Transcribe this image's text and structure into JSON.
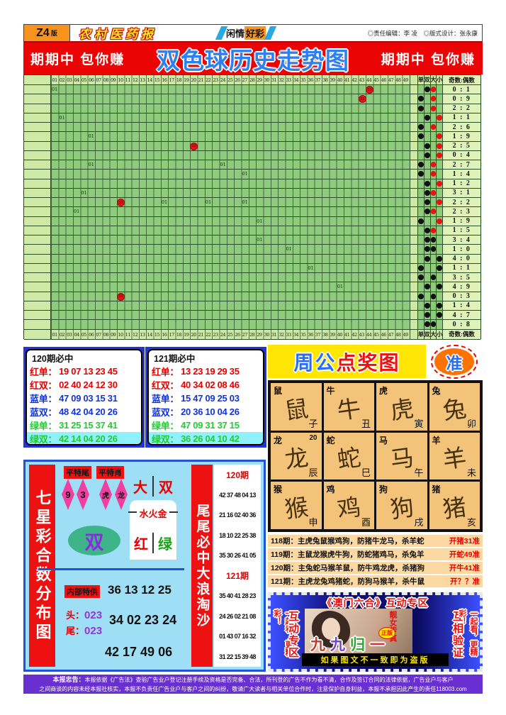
{
  "header": {
    "edition": "Z4",
    "edition_suffix": "版",
    "paper": "农村医药报",
    "center_left": "闲情",
    "center_right": "好彩",
    "credits": "◎责任编辑：李 凌　◎版式设计：张永康"
  },
  "banner": {
    "left": "期期中 包你赚",
    "title": "双色球历史走势图",
    "right": "期期中 包你赚"
  },
  "trend": {
    "col_start": 1,
    "col_count": 49,
    "side_headers": [
      "单",
      "双",
      "大",
      "小"
    ],
    "ratio_header": "奇数:偶数",
    "mark_label": "01",
    "ball_label": "33",
    "dot_black": "#111111",
    "dot_red": "#e81212",
    "rows": [
      {
        "ratio": "0 : 1",
        "dan_shuang": "双",
        "da_xiao": "大",
        "da_xiao_color": "red",
        "balls": [
          44
        ],
        "marks": [
          1
        ]
      },
      {
        "ratio": "0 : 9",
        "dan_shuang": "单",
        "da_xiao": "大",
        "da_xiao_color": "red",
        "balls": [
          43
        ],
        "marks": []
      },
      {
        "ratio": "2 : 2",
        "dan_shuang": "单",
        "da_xiao": "大",
        "da_xiao_color": "red",
        "balls": [],
        "marks": []
      },
      {
        "ratio": "1 : 1",
        "dan_shuang": "双",
        "da_xiao": "小",
        "da_xiao_color": "red",
        "balls": [],
        "marks": [
          2
        ]
      },
      {
        "ratio": "2 : 6",
        "dan_shuang": "单",
        "da_xiao": "大",
        "da_xiao_color": "red",
        "balls": [],
        "marks": []
      },
      {
        "ratio": "1 : 9",
        "dan_shuang": "单",
        "da_xiao": "小",
        "da_xiao_color": "red",
        "balls": [],
        "marks": [
          6
        ]
      },
      {
        "ratio": "2 : 5",
        "dan_shuang": "双",
        "da_xiao": "小",
        "da_xiao_color": "red",
        "balls": [
          20
        ],
        "marks": []
      },
      {
        "ratio": "0 : 4",
        "dan_shuang": "双",
        "da_xiao": "小",
        "da_xiao_color": "red",
        "balls": [],
        "marks": []
      },
      {
        "ratio": "2 : 7",
        "dan_shuang": "单",
        "da_xiao": "大",
        "da_xiao_color": "red",
        "balls": [],
        "marks": [
          6,
          24
        ]
      },
      {
        "ratio": "1 : 4",
        "dan_shuang": "单",
        "da_xiao": "大",
        "da_xiao_color": "red",
        "balls": [],
        "marks": [
          27
        ]
      },
      {
        "ratio": "1 : 2",
        "dan_shuang": "双",
        "da_xiao": "小",
        "da_xiao_color": "red",
        "balls": [],
        "marks": []
      },
      {
        "ratio": "3 : 1",
        "dan_shuang": "双",
        "da_xiao": "大",
        "da_xiao_color": "red",
        "balls": [],
        "marks": [
          5
        ]
      },
      {
        "ratio": "2 : 2",
        "dan_shuang": "双",
        "da_xiao": "小",
        "da_xiao_color": "red",
        "balls": [
          10
        ],
        "marks": [
          16,
          22,
          27
        ]
      },
      {
        "ratio": "2 : 3",
        "dan_shuang": "双",
        "da_xiao": "大",
        "da_xiao_color": "red",
        "balls": [],
        "marks": [
          4
        ]
      },
      {
        "ratio": "1 : 9",
        "dan_shuang": "单",
        "da_xiao": "小",
        "da_xiao_color": "red",
        "balls": [],
        "marks": [
          29
        ]
      },
      {
        "ratio": "1 : 5",
        "dan_shuang": "双",
        "da_xiao": "大",
        "da_xiao_color": "red",
        "balls": [],
        "marks": []
      },
      {
        "ratio": "3 : 4",
        "dan_shuang": "双",
        "da_xiao": "大",
        "da_xiao_color": "black",
        "balls": [],
        "marks": [
          29
        ]
      },
      {
        "ratio": "1 : 0",
        "dan_shuang": "双",
        "da_xiao": "大",
        "da_xiao_color": "black",
        "balls": [],
        "marks": [
          33
        ]
      },
      {
        "ratio": "4 : 0",
        "dan_shuang": "双",
        "da_xiao": "小",
        "da_xiao_color": "black",
        "balls": [],
        "marks": []
      },
      {
        "ratio": "1 : 1",
        "dan_shuang": "单",
        "da_xiao": "小",
        "da_xiao_color": "black",
        "balls": [],
        "marks": [
          36
        ]
      },
      {
        "ratio": "3 : 5",
        "dan_shuang": "单",
        "da_xiao": "大",
        "da_xiao_color": "black",
        "balls": [],
        "marks": []
      },
      {
        "ratio": "4 : 9",
        "dan_shuang": "双",
        "da_xiao": "小",
        "da_xiao_color": "black",
        "balls": [],
        "marks": [
          40
        ]
      },
      {
        "ratio": "0 : 3",
        "dan_shuang": "单",
        "da_xiao": "大",
        "da_xiao_color": "black",
        "balls": [
          10
        ],
        "marks": []
      },
      {
        "ratio": "1 : 4",
        "dan_shuang": "双",
        "da_xiao": "小",
        "da_xiao_color": "black",
        "balls": [],
        "marks": []
      },
      {
        "ratio": "4 : 7",
        "dan_shuang": "双",
        "da_xiao": "小",
        "da_xiao_color": "black",
        "balls": [],
        "marks": []
      },
      {
        "ratio": "0 : 8",
        "dan_shuang": "双",
        "da_xiao": "大",
        "da_xiao_color": "black",
        "balls": [],
        "marks": []
      }
    ]
  },
  "predictions": [
    {
      "title": "120期必中",
      "rows": [
        {
          "label": "红单：",
          "nums": "19 07 13 23 45",
          "color": "#e60000",
          "highlight": false
        },
        {
          "label": "红双：",
          "nums": "02 40 24 12 30",
          "color": "#e60000",
          "highlight": false
        },
        {
          "label": "蓝单：",
          "nums": "47 09 03 15 31",
          "color": "#1133dd",
          "highlight": false
        },
        {
          "label": "蓝双：",
          "nums": "48 42 04 20 26",
          "color": "#1133dd",
          "highlight": false
        },
        {
          "label": "绿单：",
          "nums": "31 25 15 37 41",
          "color": "#22cc33",
          "highlight": false
        },
        {
          "label": "绿双：",
          "nums": "42 14 04 20 26",
          "color": "#22cc33",
          "highlight": true
        }
      ]
    },
    {
      "title": "121期必中",
      "rows": [
        {
          "label": "红单：",
          "nums": "13 23 19 29 35",
          "color": "#e60000",
          "highlight": false
        },
        {
          "label": "红双：",
          "nums": "40 34 02 08 46",
          "color": "#e60000",
          "highlight": false
        },
        {
          "label": "蓝单：",
          "nums": "15 47 09 25 03",
          "color": "#1133dd",
          "highlight": false
        },
        {
          "label": "蓝双：",
          "nums": "20 36 10 04 26",
          "color": "#1133dd",
          "highlight": false
        },
        {
          "label": "绿单：",
          "nums": "47 09 31 37 15",
          "color": "#22cc33",
          "highlight": false
        },
        {
          "label": "绿双：",
          "nums": "36 26 04 10 42",
          "color": "#22cc33",
          "highlight": true
        }
      ]
    }
  ],
  "zhougong": {
    "title_blue": "周公",
    "title_red": "点奖图",
    "badge": "准",
    "zodiac": [
      {
        "animal": "鼠",
        "branch": "子",
        "note": ""
      },
      {
        "animal": "牛",
        "branch": "丑",
        "note": ""
      },
      {
        "animal": "虎",
        "branch": "寅",
        "note": ""
      },
      {
        "animal": "兔",
        "branch": "卯",
        "note": ""
      },
      {
        "animal": "龙",
        "branch": "辰",
        "note": "20"
      },
      {
        "animal": "蛇",
        "branch": "巳",
        "note": ""
      },
      {
        "animal": "马",
        "branch": "午",
        "note": ""
      },
      {
        "animal": "羊",
        "branch": "未",
        "note": ""
      },
      {
        "animal": "猴",
        "branch": "申",
        "note": ""
      },
      {
        "animal": "鸡",
        "branch": "酉",
        "note": ""
      },
      {
        "animal": "狗",
        "branch": "戌",
        "note": ""
      },
      {
        "animal": "猪",
        "branch": "亥",
        "note": ""
      }
    ],
    "period_lines": [
      {
        "text": "118期：主虎兔鼠猴鸡狗，防猪牛龙马，杀羊蛇",
        "tail": "开猪31准"
      },
      {
        "text": "119期：主鼠龙猴虎牛狗，防蛇猪鸡马，杀兔羊",
        "tail": "开蛇49准"
      },
      {
        "text": "120期：主兔蛇马猴羊鼠，防牛鸡龙虎，杀猪狗",
        "tail": "开牛41准"
      },
      {
        "text": "121期：主虎龙兔鸡猪蛇，防狗马猴羊，杀牛鼠",
        "tail": "开？？准"
      }
    ]
  },
  "seven": {
    "left_banner": "七星彩合数分布图",
    "tags": [
      "平特尾",
      "平特肖"
    ],
    "diamonds": [
      {
        "label": "9"
      },
      {
        "label": "3"
      },
      {
        "label": "虎"
      },
      {
        "label": "龙"
      }
    ],
    "big_pair": [
      "大",
      "双"
    ],
    "elements": "水火金",
    "color_pair": [
      "红",
      "绿"
    ],
    "oval": "双",
    "special_label": "内部特供",
    "special_nums": "36 13 12 25",
    "head_label": "头：",
    "head_val": "023",
    "tail_label": "尾：",
    "tail_val": "023",
    "mid_nums": "34 02 23 24",
    "bottom_nums": "42 17 49 06",
    "right_banner": "尾尾必中大浪淘沙",
    "periods": [
      {
        "label": "120期",
        "rows": [
          "42 37 48 04 13",
          "21 16 02 40 36",
          "18 10 22 25 38",
          "35 30 26 41 05"
        ]
      },
      {
        "label": "121期",
        "rows": [
          "35 40 41 28 23",
          "24 26 02 21 08",
          "01 43 07 16 32",
          "31 22 15 39 48"
        ]
      }
    ]
  },
  "macau": {
    "title": "《澳门六合》互动专区",
    "left_outer": "一起看，更精彩！",
    "left_inner": "互动专区",
    "right_inner": "互相验证",
    "right_outer": "一起看，更精彩！",
    "photo": {
      "vertical": "靓女传真",
      "chars": [
        {
          "ch": "九",
          "color": "#c43a2c"
        },
        {
          "ch": "九",
          "color": "#7b3fd4"
        },
        {
          "ch": "归",
          "color": "#2ea82e"
        },
        {
          "ch": "一",
          "color": "#e03131"
        }
      ],
      "badge": "正版"
    },
    "bottom": "如果图文不一致即为盗版"
  },
  "disclaimer": {
    "lead": "本报忠告：",
    "line1": "本报依据《广告法》查验广告业户登记注册手续及资格是否完备、合法，所刊登的广告不作为看不清，合作及签订合同的法律依据，广告业户与客户",
    "line2": "之间商谈的内容未经本报社核实，本报不负责任广告业户与客户之间的纠纷，敬请广大读者与相关单位合作时，注意保护自身利益，本报不承担因此产生的责任118003.com"
  }
}
